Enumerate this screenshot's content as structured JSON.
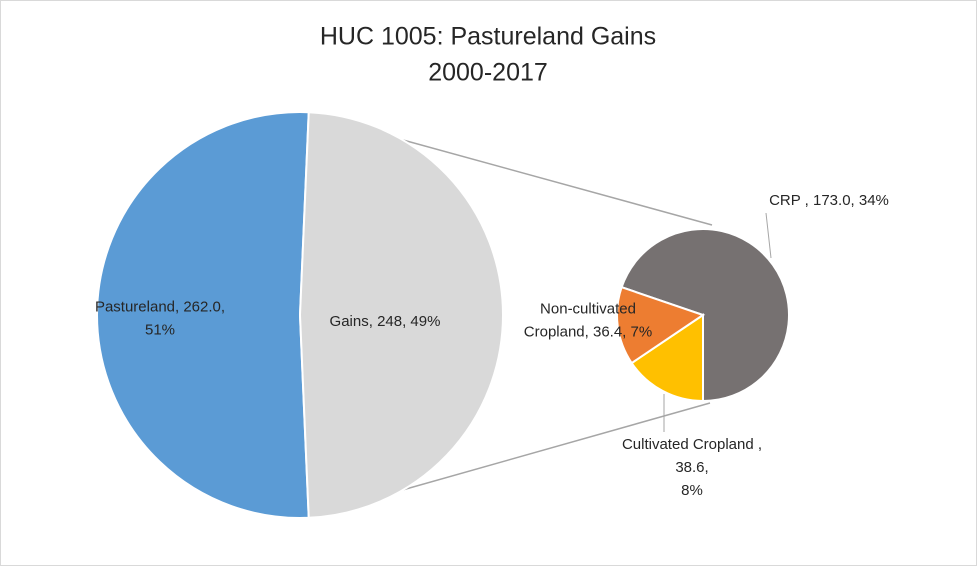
{
  "chart_data": {
    "type": "pie-of-pie",
    "title": [
      "HUC 1005: Pastureland Gains",
      "2000-2017"
    ],
    "values": [
      262.0,
      248
    ],
    "colors": [
      "#5b9bd5",
      "#d9d9d9"
    ],
    "value_labels": [
      [
        "Pastureland, 262.0,",
        "51%"
      ],
      [
        "Gains, 248, 49%"
      ]
    ],
    "secondary": {
      "values": [
        173.0,
        38.6,
        36.4
      ],
      "colors": [
        "#767171",
        "#ffc000",
        "#ed7d31"
      ],
      "value_labels": [
        [
          "CRP , 173.0, 34%"
        ],
        [
          "Cultivated Cropland ,",
          "38.6,",
          "8%"
        ],
        [
          "Non-cultivated",
          "Cropland, 36.4, 7%"
        ]
      ]
    }
  }
}
